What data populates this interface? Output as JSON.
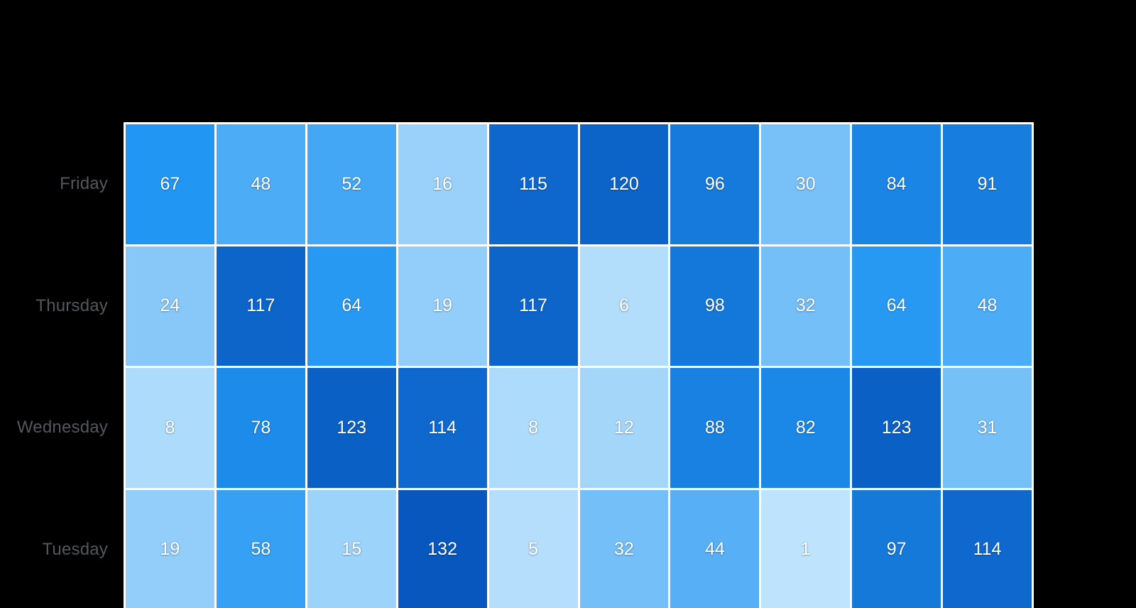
{
  "page": {
    "background_color": "#000000"
  },
  "chart_data": {
    "type": "heatmap",
    "rows": [
      "Friday",
      "Thursday",
      "Wednesday",
      "Tuesday"
    ],
    "num_columns": 10,
    "matrix": [
      [
        67,
        48,
        52,
        16,
        115,
        120,
        96,
        30,
        84,
        91
      ],
      [
        24,
        117,
        64,
        19,
        117,
        6,
        98,
        32,
        64,
        48
      ],
      [
        8,
        78,
        123,
        114,
        8,
        12,
        88,
        82,
        123,
        31
      ],
      [
        19,
        58,
        15,
        132,
        5,
        32,
        44,
        1,
        97,
        114
      ]
    ],
    "value_range": [
      1,
      132
    ],
    "color_scale": {
      "stops": [
        "#BEE3FC",
        "#2196F3",
        "#0757BE"
      ],
      "domain": [
        1,
        66.5,
        132
      ]
    },
    "cell_text_color": "#FFFFFF",
    "row_label_color": "#54575B",
    "grid_line_color": "#FFFFFF",
    "legend": "none",
    "x_axis_labels": "none-visible",
    "note_layout": "bottom row partially clipped at viewport edge"
  }
}
